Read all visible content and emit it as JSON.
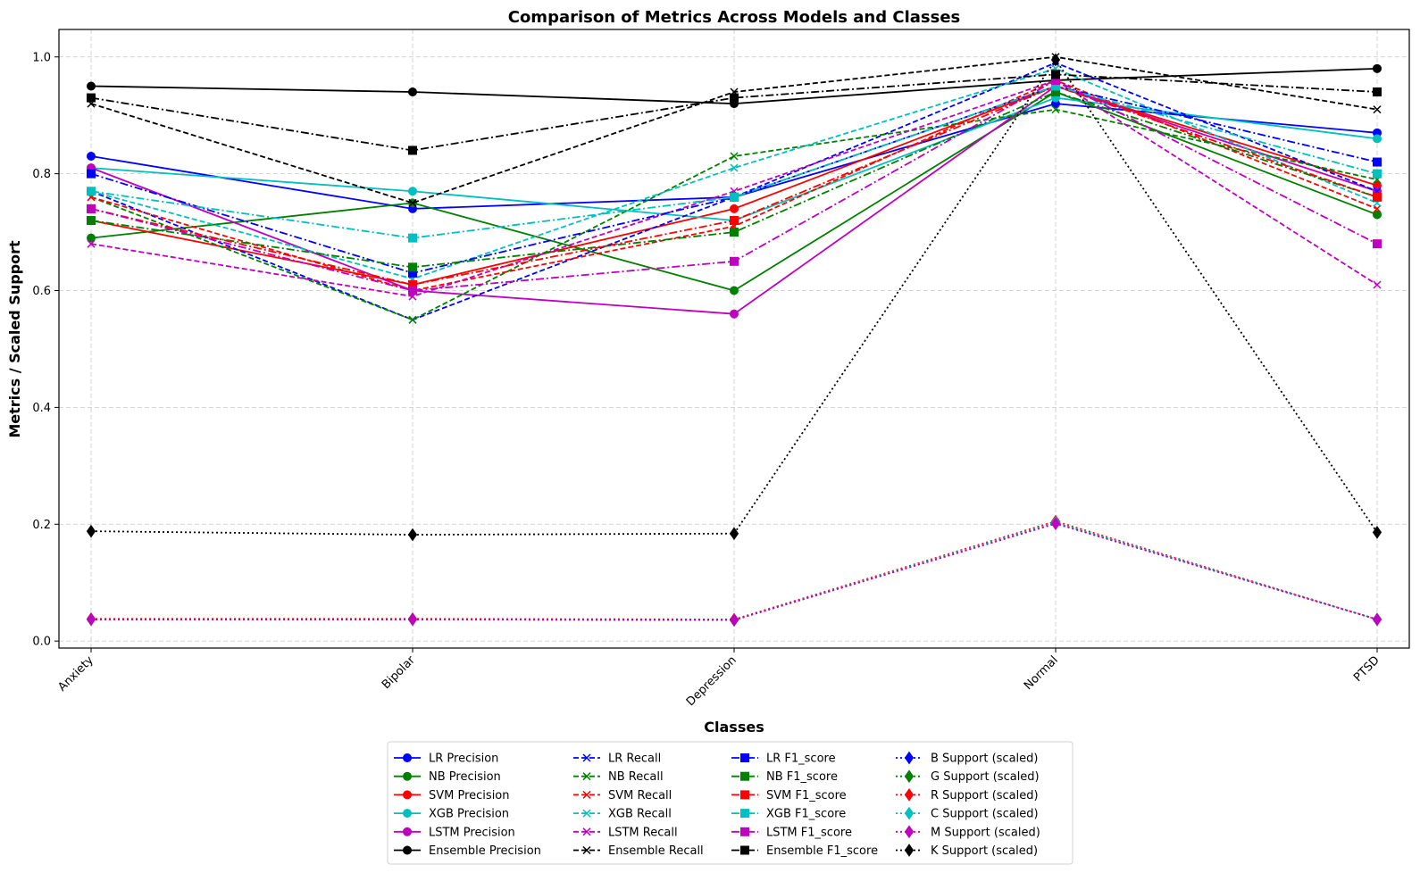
{
  "chart_data": {
    "type": "line",
    "title": "Comparison of Metrics Across Models and Classes",
    "xlabel": "Classes",
    "ylabel": "Metrics / Scaled Support",
    "categories": [
      "Anxiety",
      "Bipolar",
      "Depression",
      "Normal",
      "PTSD"
    ],
    "ylim": [
      -0.012,
      1.047
    ],
    "yticks": [
      "0.0",
      "0.2",
      "0.4",
      "0.6",
      "0.8",
      "1.0"
    ],
    "grid": true,
    "legend_position": "bottom-center",
    "series": [
      {
        "name": "LR Precision",
        "color": "#0000ff",
        "dash": "solid",
        "marker": "circle",
        "values": [
          0.83,
          0.74,
          0.76,
          0.92,
          0.87
        ]
      },
      {
        "name": "NB Precision",
        "color": "#008000",
        "dash": "solid",
        "marker": "circle",
        "values": [
          0.69,
          0.75,
          0.6,
          0.94,
          0.73
        ]
      },
      {
        "name": "SVM Precision",
        "color": "#ff0000",
        "dash": "solid",
        "marker": "circle",
        "values": [
          0.72,
          0.61,
          0.74,
          0.95,
          0.78
        ]
      },
      {
        "name": "XGB Precision",
        "color": "#00bfbf",
        "dash": "solid",
        "marker": "circle",
        "values": [
          0.81,
          0.77,
          0.72,
          0.93,
          0.86
        ]
      },
      {
        "name": "LSTM Precision",
        "color": "#bf00bf",
        "dash": "solid",
        "marker": "circle",
        "values": [
          0.81,
          0.6,
          0.56,
          0.95,
          0.77
        ]
      },
      {
        "name": "Ensemble Precision",
        "color": "#000000",
        "dash": "solid",
        "marker": "circle",
        "values": [
          0.95,
          0.94,
          0.92,
          0.96,
          0.98
        ]
      },
      {
        "name": "LR Recall",
        "color": "#0000ff",
        "dash": "dashed",
        "marker": "x",
        "values": [
          0.77,
          0.55,
          0.76,
          0.99,
          0.77
        ]
      },
      {
        "name": "NB Recall",
        "color": "#008000",
        "dash": "dashed",
        "marker": "x",
        "values": [
          0.76,
          0.55,
          0.83,
          0.91,
          0.79
        ]
      },
      {
        "name": "SVM Recall",
        "color": "#ff0000",
        "dash": "dashed",
        "marker": "x",
        "values": [
          0.76,
          0.6,
          0.71,
          0.96,
          0.74
        ]
      },
      {
        "name": "XGB Recall",
        "color": "#00bfbf",
        "dash": "dashed",
        "marker": "x",
        "values": [
          0.77,
          0.62,
          0.81,
          0.98,
          0.75
        ]
      },
      {
        "name": "LSTM Recall",
        "color": "#bf00bf",
        "dash": "dashed",
        "marker": "x",
        "values": [
          0.68,
          0.59,
          0.77,
          0.96,
          0.61
        ]
      },
      {
        "name": "Ensemble Recall",
        "color": "#000000",
        "dash": "dashed",
        "marker": "x",
        "values": [
          0.92,
          0.75,
          0.94,
          1.0,
          0.91
        ]
      },
      {
        "name": "LR F1_score",
        "color": "#0000ff",
        "dash": "dashdot",
        "marker": "square",
        "values": [
          0.8,
          0.63,
          0.76,
          0.95,
          0.82
        ]
      },
      {
        "name": "NB F1_score",
        "color": "#008000",
        "dash": "dashdot",
        "marker": "square",
        "values": [
          0.72,
          0.64,
          0.7,
          0.94,
          0.76
        ]
      },
      {
        "name": "SVM F1_score",
        "color": "#ff0000",
        "dash": "dashdot",
        "marker": "square",
        "values": [
          0.74,
          0.61,
          0.72,
          0.95,
          0.76
        ]
      },
      {
        "name": "XGB F1_score",
        "color": "#00bfbf",
        "dash": "dashdot",
        "marker": "square",
        "values": [
          0.77,
          0.69,
          0.76,
          0.95,
          0.8
        ]
      },
      {
        "name": "LSTM F1_score",
        "color": "#bf00bf",
        "dash": "dashdot",
        "marker": "square",
        "values": [
          0.74,
          0.6,
          0.65,
          0.96,
          0.68
        ]
      },
      {
        "name": "Ensemble F1_score",
        "color": "#000000",
        "dash": "dashdot",
        "marker": "square",
        "values": [
          0.93,
          0.84,
          0.93,
          0.97,
          0.94
        ]
      },
      {
        "name": "B Support (scaled)",
        "color": "#0000ff",
        "dash": "dotted",
        "marker": "diamond",
        "values": [
          0.037,
          0.037,
          0.036,
          0.202,
          0.037
        ]
      },
      {
        "name": "G Support (scaled)",
        "color": "#008000",
        "dash": "dotted",
        "marker": "diamond",
        "values": [
          0.037,
          0.037,
          0.036,
          0.202,
          0.037
        ]
      },
      {
        "name": "R Support (scaled)",
        "color": "#ff0000",
        "dash": "dotted",
        "marker": "diamond",
        "values": [
          0.038,
          0.038,
          0.037,
          0.205,
          0.037
        ]
      },
      {
        "name": "C Support (scaled)",
        "color": "#00bfbf",
        "dash": "dotted",
        "marker": "diamond",
        "values": [
          0.037,
          0.037,
          0.036,
          0.203,
          0.037
        ]
      },
      {
        "name": "M Support (scaled)",
        "color": "#bf00bf",
        "dash": "dotted",
        "marker": "diamond",
        "values": [
          0.037,
          0.037,
          0.036,
          0.201,
          0.037
        ]
      },
      {
        "name": "K Support (scaled)",
        "color": "#000000",
        "dash": "dotted",
        "marker": "diamond",
        "values": [
          0.188,
          0.182,
          0.184,
          0.995,
          0.186
        ]
      }
    ]
  }
}
